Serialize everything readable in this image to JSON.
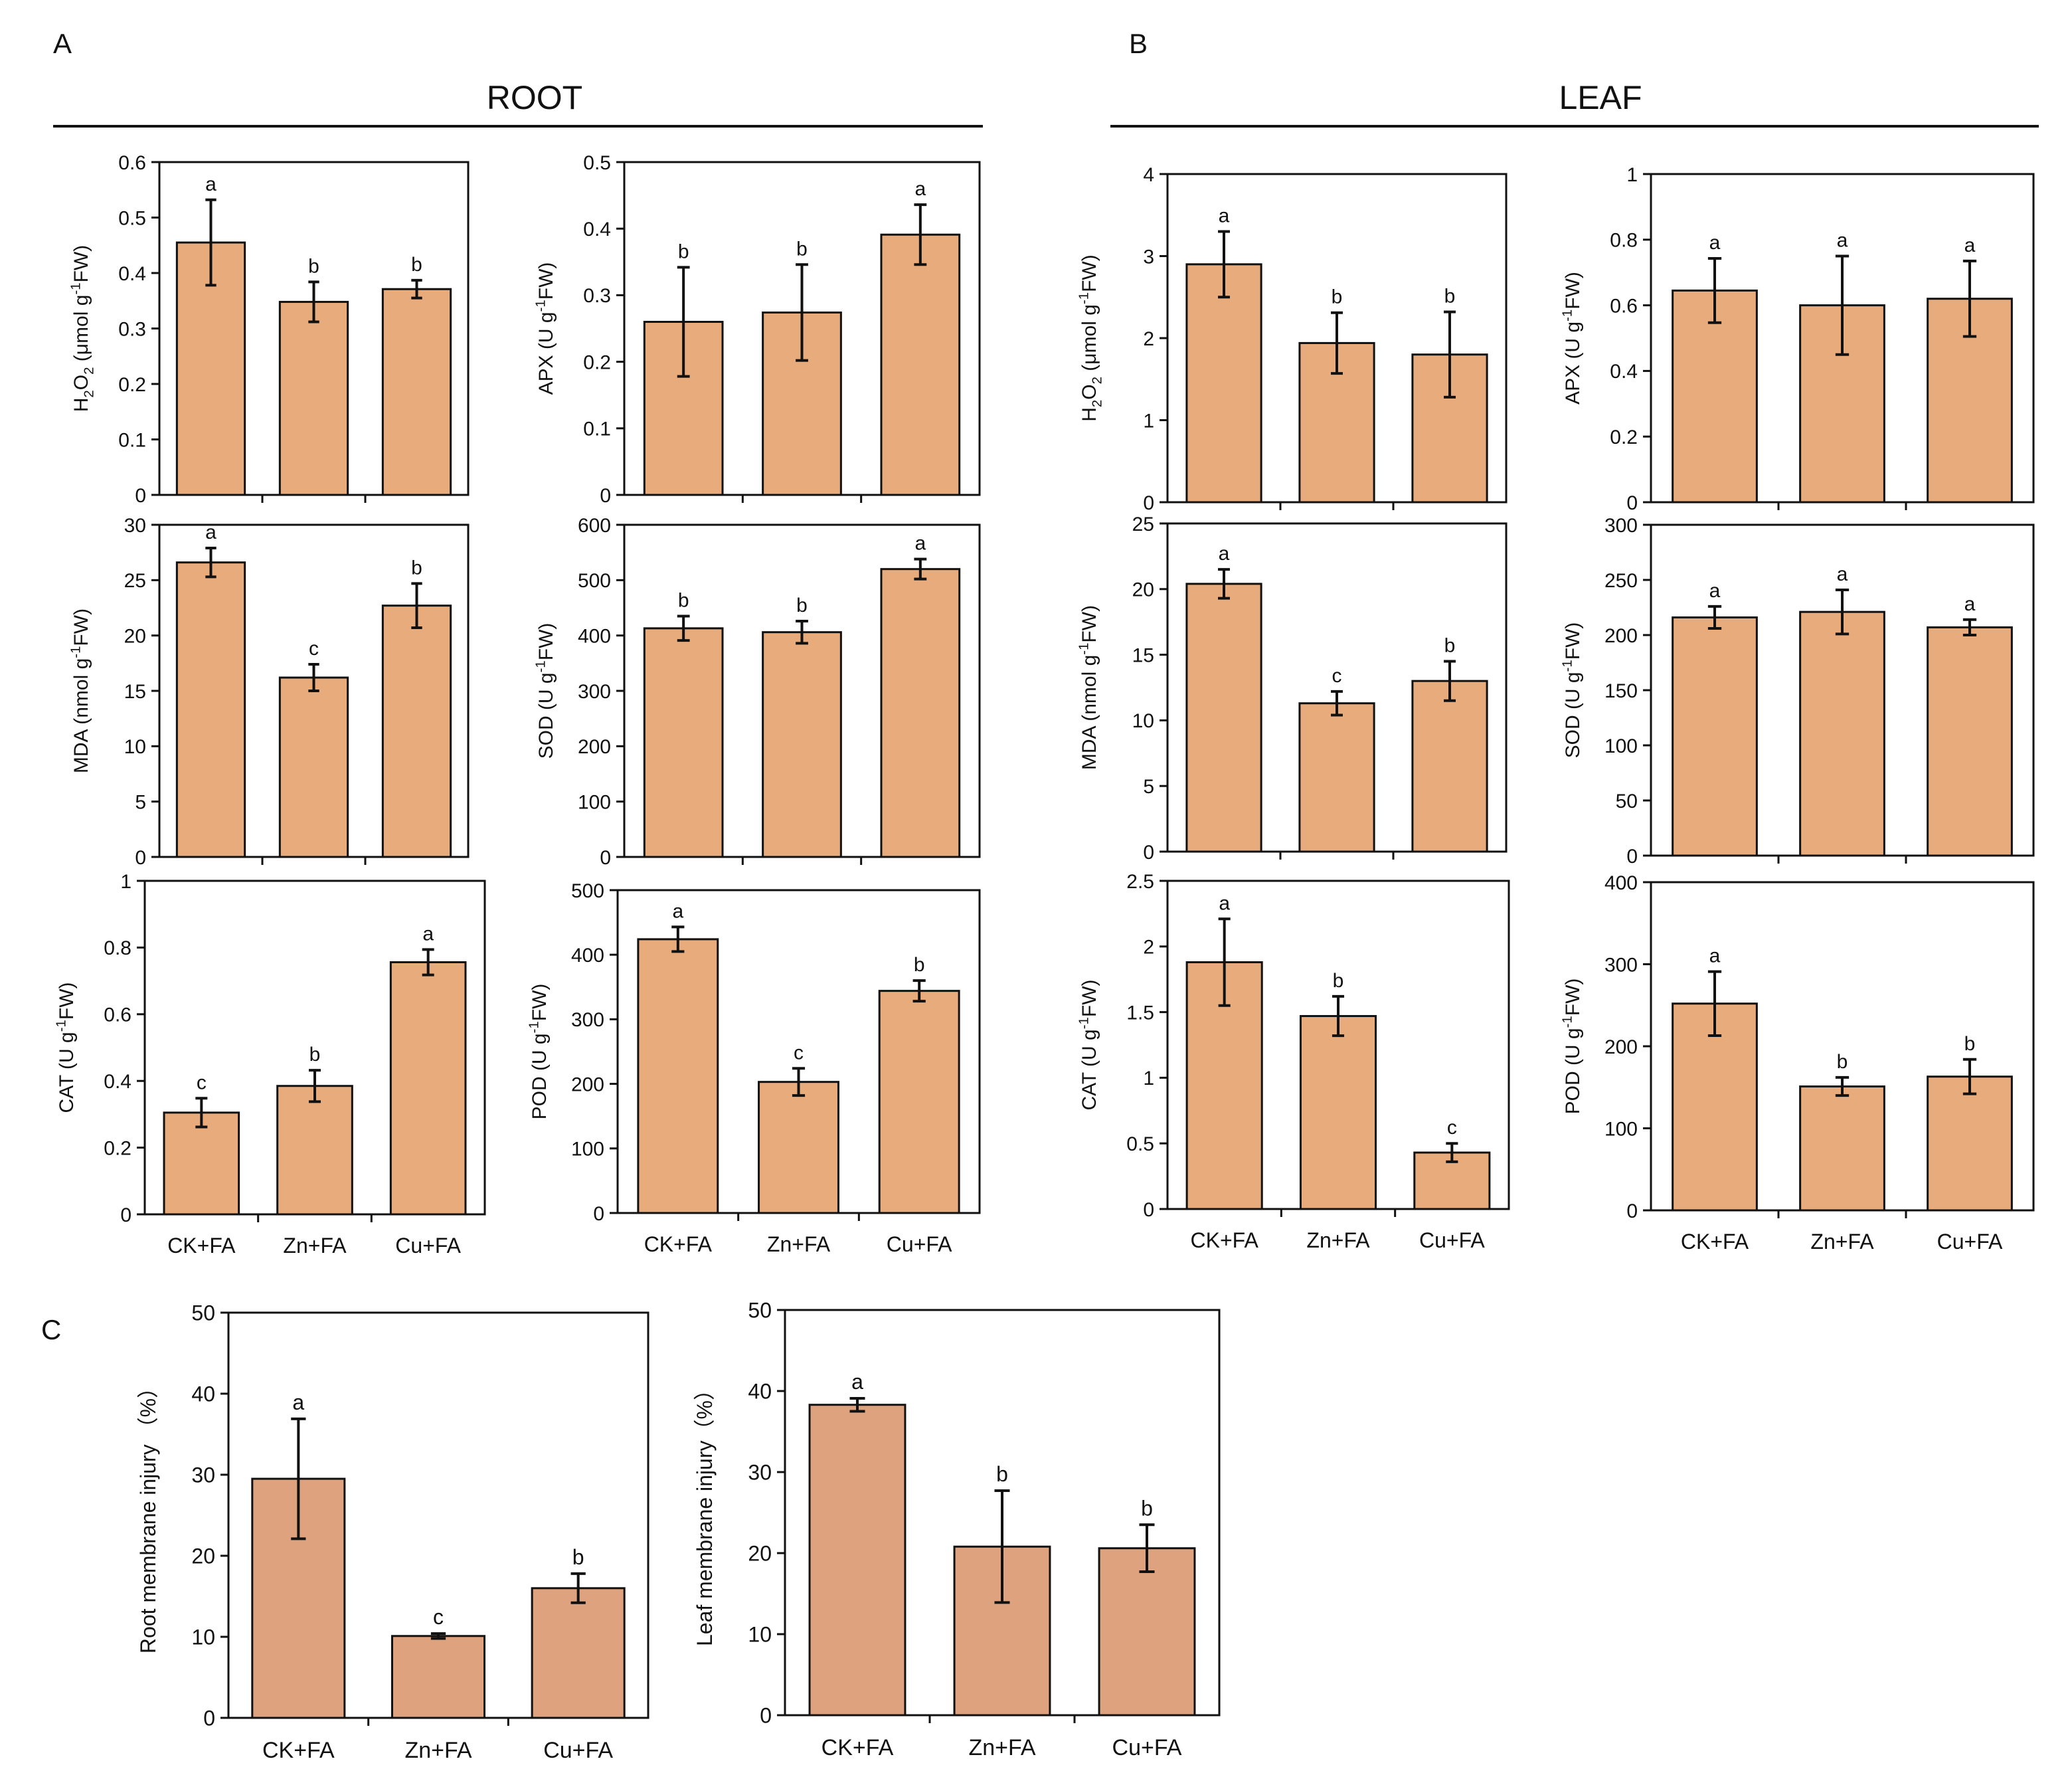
{
  "figure": {
    "panel_labels": {
      "a": "A",
      "b": "B",
      "c": "C"
    },
    "section_titles": {
      "root": "ROOT",
      "leaf": "LEAF"
    },
    "bar_color": "#E8AB7C",
    "bar_color_c": "#DEA27E"
  },
  "chart_data": [
    {
      "id": "root-h2o2",
      "type": "bar",
      "ylabel": "H2O2 (μmol g-1FW)",
      "ylim": [
        0,
        0.6
      ],
      "yticks": [
        0,
        0.1,
        0.2,
        0.3,
        0.4,
        0.5,
        0.6
      ],
      "categories": [
        "CK+FA",
        "Zn+FA",
        "Cu+FA"
      ],
      "show_xlabels": false,
      "values": [
        0.455,
        0.348,
        0.371
      ],
      "errors": [
        0.077,
        0.036,
        0.016
      ],
      "letters": [
        "a",
        "b",
        "b"
      ]
    },
    {
      "id": "root-apx",
      "type": "bar",
      "ylabel": "APX (U g-1FW)",
      "ylim": [
        0,
        0.5
      ],
      "yticks": [
        0,
        0.1,
        0.2,
        0.3,
        0.4,
        0.5
      ],
      "categories": [
        "CK+FA",
        "Zn+FA",
        "Cu+FA"
      ],
      "show_xlabels": false,
      "values": [
        0.26,
        0.274,
        0.391
      ],
      "errors": [
        0.082,
        0.072,
        0.045
      ],
      "letters": [
        "b",
        "b",
        "a"
      ]
    },
    {
      "id": "root-mda",
      "type": "bar",
      "ylabel": "MDA (nmol g-1FW)",
      "ylim": [
        0,
        30
      ],
      "yticks": [
        0,
        5,
        10,
        15,
        20,
        25,
        30
      ],
      "categories": [
        "CK+FA",
        "Zn+FA",
        "Cu+FA"
      ],
      "show_xlabels": false,
      "values": [
        26.6,
        16.2,
        22.7
      ],
      "errors": [
        1.3,
        1.2,
        2.0
      ],
      "letters": [
        "a",
        "c",
        "b"
      ]
    },
    {
      "id": "root-sod",
      "type": "bar",
      "ylabel": "SOD (U g-1FW)",
      "ylim": [
        0,
        600
      ],
      "yticks": [
        0,
        100,
        200,
        300,
        400,
        500,
        600
      ],
      "categories": [
        "CK+FA",
        "Zn+FA",
        "Cu+FA"
      ],
      "show_xlabels": false,
      "values": [
        413,
        406,
        520
      ],
      "errors": [
        22,
        20,
        18
      ],
      "letters": [
        "b",
        "b",
        "a"
      ]
    },
    {
      "id": "root-cat",
      "type": "bar",
      "ylabel": "CAT (U g-1FW)",
      "ylim": [
        0,
        1
      ],
      "yticks": [
        0,
        0.2,
        0.4,
        0.6,
        0.8,
        1
      ],
      "categories": [
        "CK+FA",
        "Zn+FA",
        "Cu+FA"
      ],
      "show_xlabels": true,
      "values": [
        0.305,
        0.385,
        0.756
      ],
      "errors": [
        0.043,
        0.047,
        0.038
      ],
      "letters": [
        "c",
        "b",
        "a"
      ]
    },
    {
      "id": "root-pod",
      "type": "bar",
      "ylabel": "POD (U g-1FW)",
      "ylim": [
        0,
        500
      ],
      "yticks": [
        0,
        100,
        200,
        300,
        400,
        500
      ],
      "categories": [
        "CK+FA",
        "Zn+FA",
        "Cu+FA"
      ],
      "show_xlabels": true,
      "values": [
        424,
        203,
        344
      ],
      "errors": [
        19,
        21,
        16
      ],
      "letters": [
        "a",
        "c",
        "b"
      ]
    },
    {
      "id": "leaf-h2o2",
      "type": "bar",
      "ylabel": "H2O2 (μmol g-1FW)",
      "ylim": [
        0,
        4
      ],
      "yticks": [
        0,
        1,
        2,
        3,
        4
      ],
      "categories": [
        "CK+FA",
        "Zn+FA",
        "Cu+FA"
      ],
      "show_xlabels": false,
      "values": [
        2.9,
        1.94,
        1.8
      ],
      "errors": [
        0.4,
        0.37,
        0.52
      ],
      "letters": [
        "a",
        "b",
        "b"
      ]
    },
    {
      "id": "leaf-apx",
      "type": "bar",
      "ylabel": "APX (U g-1FW)",
      "ylim": [
        0,
        1
      ],
      "yticks": [
        0,
        0.2,
        0.4,
        0.6,
        0.8,
        1
      ],
      "categories": [
        "CK+FA",
        "Zn+FA",
        "Cu+FA"
      ],
      "show_xlabels": false,
      "values": [
        0.645,
        0.6,
        0.62
      ],
      "errors": [
        0.098,
        0.15,
        0.115
      ],
      "letters": [
        "a",
        "a",
        "a"
      ]
    },
    {
      "id": "leaf-mda",
      "type": "bar",
      "ylabel": "MDA (nmol g-1FW)",
      "ylim": [
        0,
        25
      ],
      "yticks": [
        0,
        5,
        10,
        15,
        20,
        25
      ],
      "categories": [
        "CK+FA",
        "Zn+FA",
        "Cu+FA"
      ],
      "show_xlabels": false,
      "values": [
        20.4,
        11.3,
        13.0
      ],
      "errors": [
        1.1,
        0.9,
        1.5
      ],
      "letters": [
        "a",
        "c",
        "b"
      ]
    },
    {
      "id": "leaf-sod",
      "type": "bar",
      "ylabel": "SOD (U g-1FW)",
      "ylim": [
        0,
        300
      ],
      "yticks": [
        0,
        50,
        100,
        150,
        200,
        250,
        300
      ],
      "categories": [
        "CK+FA",
        "Zn+FA",
        "Cu+FA"
      ],
      "show_xlabels": false,
      "values": [
        216,
        221,
        207
      ],
      "errors": [
        10,
        20,
        7
      ],
      "letters": [
        "a",
        "a",
        "a"
      ]
    },
    {
      "id": "leaf-cat",
      "type": "bar",
      "ylabel": "CAT (U g-1FW)",
      "ylim": [
        0,
        2.5
      ],
      "yticks": [
        0,
        0.5,
        1,
        1.5,
        2,
        2.5
      ],
      "categories": [
        "CK+FA",
        "Zn+FA",
        "Cu+FA"
      ],
      "show_xlabels": true,
      "values": [
        1.88,
        1.47,
        0.43
      ],
      "errors": [
        0.33,
        0.15,
        0.07
      ],
      "letters": [
        "a",
        "b",
        "c"
      ]
    },
    {
      "id": "leaf-pod",
      "type": "bar",
      "ylabel": "POD (U g-1FW)",
      "ylim": [
        0,
        400
      ],
      "yticks": [
        0,
        100,
        200,
        300,
        400
      ],
      "categories": [
        "CK+FA",
        "Zn+FA",
        "Cu+FA"
      ],
      "show_xlabels": true,
      "values": [
        252,
        151,
        163
      ],
      "errors": [
        39,
        11,
        21
      ],
      "letters": [
        "a",
        "b",
        "b"
      ]
    },
    {
      "id": "root-membrane",
      "type": "bar",
      "ylabel": "Root membrane injury （%）",
      "ylim": [
        0,
        50
      ],
      "yticks": [
        0,
        10,
        20,
        30,
        40,
        50
      ],
      "categories": [
        "CK+FA",
        "Zn+FA",
        "Cu+FA"
      ],
      "show_xlabels": true,
      "values": [
        29.5,
        10.1,
        16.0
      ],
      "errors": [
        7.4,
        0.3,
        1.8
      ],
      "letters": [
        "a",
        "c",
        "b"
      ]
    },
    {
      "id": "leaf-membrane",
      "type": "bar",
      "ylabel": "Leaf membrane injury（%）",
      "ylim": [
        0,
        50
      ],
      "yticks": [
        0,
        10,
        20,
        30,
        40,
        50
      ],
      "categories": [
        "CK+FA",
        "Zn+FA",
        "Cu+FA"
      ],
      "show_xlabels": true,
      "values": [
        38.3,
        20.8,
        20.6
      ],
      "errors": [
        0.8,
        6.9,
        2.9
      ],
      "letters": [
        "a",
        "b",
        "b"
      ]
    }
  ]
}
